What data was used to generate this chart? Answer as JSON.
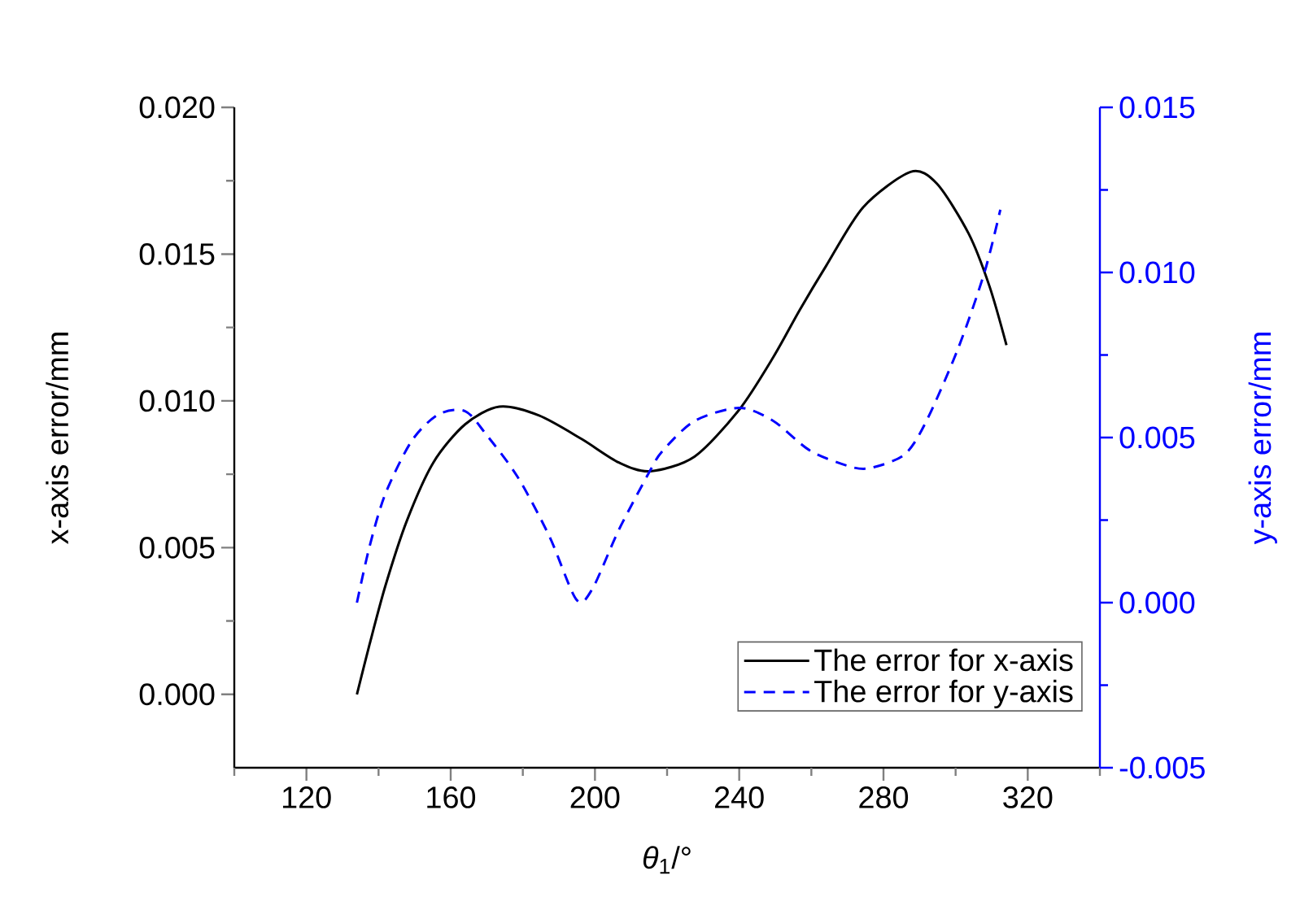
{
  "chart_data": {
    "type": "line",
    "xlabel": "*θ*$_{1}$/°",
    "ylabel": "x-axis error/mm",
    "y2label": "y-axis error/mm",
    "xlim": [
      100,
      340
    ],
    "xticks": [
      {
        "value": 100,
        "label": null
      },
      120,
      {
        "value": 140,
        "label": null
      },
      160,
      {
        "value": 180,
        "label": null
      },
      200,
      {
        "value": 220,
        "label": null
      },
      240,
      {
        "value": 260,
        "label": null
      },
      280,
      {
        "value": 300,
        "label": null
      },
      320,
      {
        "value": 340,
        "label": null
      }
    ],
    "ylim": [
      -0.0025,
      0.02
    ],
    "yticks": [
      {
        "value": 0,
        "label": "0.000"
      },
      {
        "value": 0.0025,
        "label": null
      },
      {
        "value": 0.005,
        "label": "0.005"
      },
      {
        "value": 0.0075,
        "label": null
      },
      {
        "value": 0.01,
        "label": "0.010"
      },
      {
        "value": 0.0125,
        "label": null
      },
      {
        "value": 0.015,
        "label": "0.015"
      },
      {
        "value": 0.0175,
        "label": null
      },
      {
        "value": 0.02,
        "label": "0.020"
      }
    ],
    "y2lim": [
      -0.005,
      0.015
    ],
    "y2ticks": [
      {
        "value": -0.005,
        "label": "-0.005"
      },
      {
        "value": -0.0025,
        "label": null
      },
      {
        "value": 0,
        "label": "0.000"
      },
      {
        "value": 0.0025,
        "label": null
      },
      {
        "value": 0.005,
        "label": "0.005"
      },
      {
        "value": 0.0075,
        "label": null
      },
      {
        "value": 0.01,
        "label": "0.010"
      },
      {
        "value": 0.0125,
        "label": null
      },
      {
        "value": 0.015,
        "label": "0.015"
      }
    ],
    "legend": "bottom right",
    "grid": false,
    "marker": "none",
    "series": [
      {
        "name": "The error for x-axis",
        "color": "#000000",
        "line_style": "solid",
        "x": [
          134,
          137.5,
          141.9,
          147.8,
          155.2,
          164,
          173.5,
          184.5,
          196.3,
          206.6,
          215.3,
          227.6,
          240,
          249.5,
          256.8,
          264.1,
          274.4,
          287.5,
          294.8,
          303.6,
          309.4,
          314.1
        ],
        "values": [
          0,
          0.0017,
          0.0037,
          0.0059,
          0.0079,
          0.0092,
          0.0098,
          0.0095,
          0.0087,
          0.0079,
          0.0076,
          0.0081,
          0.0097,
          0.0115,
          0.0131,
          0.0146,
          0.0166,
          0.0178,
          0.0174,
          0.0157,
          0.0139,
          0.0119
        ]
      },
      {
        "name": "The error for y-axis",
        "color": "#0000ff",
        "line_style": "dashed",
        "axis": "y2",
        "x": [
          134,
          137.5,
          141.9,
          149.2,
          156.6,
          164,
          169.8,
          178.6,
          187.4,
          194.8,
          199.2,
          206.6,
          215.3,
          218.8,
          227.6,
          240,
          249.5,
          259.7,
          271.4,
          277.3,
          286,
          291.9,
          300.7,
          308,
          312.4
        ],
        "values": [
          0,
          0.0017,
          0.0033,
          0.0049,
          0.0057,
          0.0058,
          0.0051,
          0.0038,
          0.002,
          0.0001,
          0.0004,
          0.0022,
          0.004,
          0.0046,
          0.0055,
          0.0059,
          0.0055,
          0.0046,
          0.0041,
          0.0041,
          0.0045,
          0.0055,
          0.0077,
          0.01,
          0.0119
        ]
      }
    ]
  }
}
